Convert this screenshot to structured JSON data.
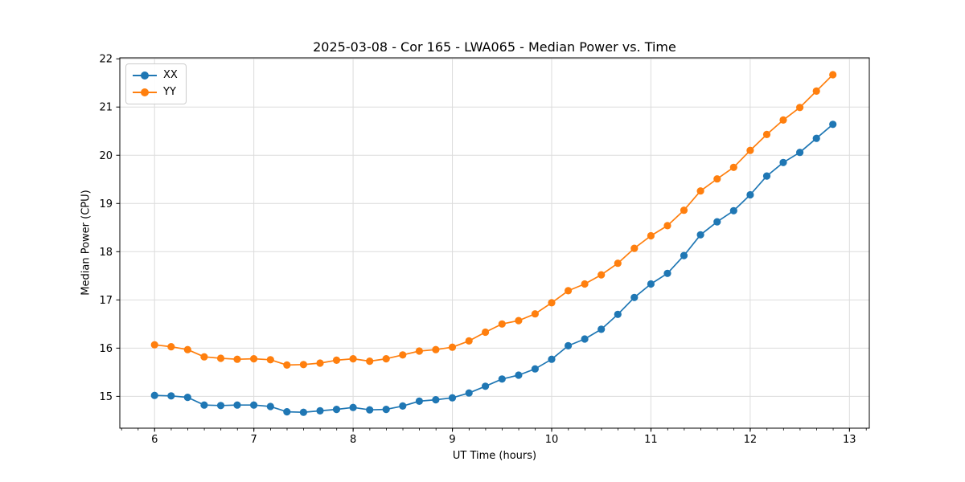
{
  "figure": {
    "title": "2025-03-08 - Cor 165 - LWA065 - Median Power vs. Time",
    "xlabel": "UT Time (hours)",
    "ylabel": "Median Power (CPU)"
  },
  "chart_data": {
    "type": "line",
    "title": "2025-03-08 - Cor 165 - LWA065 - Median Power vs. Time",
    "xlabel": "UT Time (hours)",
    "ylabel": "Median Power (CPU)",
    "grid": true,
    "legend_position": "upper left",
    "marker": "circle",
    "xlim": [
      5.65,
      13.2
    ],
    "ylim": [
      14.34,
      22.02
    ],
    "xticks": [
      6,
      7,
      8,
      9,
      10,
      11,
      12,
      13
    ],
    "yticks": [
      15,
      16,
      17,
      18,
      19,
      20,
      21,
      22
    ],
    "x_minor_step": 0.1667,
    "x": [
      6,
      6.167,
      6.333,
      6.5,
      6.667,
      6.833,
      7,
      7.167,
      7.333,
      7.5,
      7.667,
      7.833,
      8,
      8.167,
      8.333,
      8.5,
      8.667,
      8.833,
      9,
      9.167,
      9.333,
      9.5,
      9.667,
      9.833,
      10,
      10.167,
      10.333,
      10.5,
      10.667,
      10.833,
      11,
      11.167,
      11.333,
      11.5,
      11.667,
      11.833,
      12,
      12.167,
      12.333,
      12.5,
      12.667,
      12.833
    ],
    "series": [
      {
        "name": "XX",
        "color": "#1f77b4",
        "values": [
          15.02,
          15.01,
          14.98,
          14.82,
          14.81,
          14.82,
          14.82,
          14.79,
          14.68,
          14.67,
          14.7,
          14.73,
          14.77,
          14.72,
          14.73,
          14.8,
          14.9,
          14.93,
          14.97,
          15.07,
          15.21,
          15.36,
          15.44,
          15.57,
          15.77,
          16.05,
          16.19,
          16.39,
          16.7,
          17.05,
          17.33,
          17.55,
          17.92,
          18.35,
          18.62,
          18.85,
          19.18,
          19.57,
          19.85,
          20.06,
          20.35,
          20.64
        ]
      },
      {
        "name": "YY",
        "color": "#ff7f0e",
        "values": [
          16.07,
          16.03,
          15.97,
          15.82,
          15.79,
          15.77,
          15.78,
          15.76,
          15.65,
          15.66,
          15.69,
          15.75,
          15.78,
          15.73,
          15.78,
          15.86,
          15.94,
          15.97,
          16.02,
          16.15,
          16.33,
          16.5,
          16.57,
          16.71,
          16.94,
          17.19,
          17.33,
          17.52,
          17.76,
          18.07,
          18.33,
          18.54,
          18.86,
          19.26,
          19.51,
          19.75,
          20.1,
          20.43,
          20.73,
          20.99,
          21.33,
          21.67
        ]
      }
    ]
  }
}
